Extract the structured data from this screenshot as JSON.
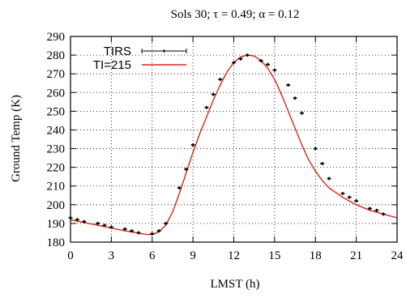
{
  "chart_data": {
    "type": "line",
    "title": "Sols 30; τ = 0.49; α = 0.12",
    "xlabel": "LMST (h)",
    "ylabel": "Ground Temp (K)",
    "xlim": [
      0,
      24
    ],
    "ylim": [
      180,
      290
    ],
    "xticks": [
      0,
      3,
      6,
      9,
      12,
      15,
      18,
      21,
      24
    ],
    "yticks": [
      180,
      190,
      200,
      210,
      220,
      230,
      240,
      250,
      260,
      270,
      280,
      290
    ],
    "grid": true,
    "legend_position": "top-left",
    "legend": [
      {
        "label": "TIRS",
        "style": "points-with-errorbars",
        "color": "#000000"
      },
      {
        "label": "TI=215",
        "style": "line",
        "color": "#d9261c"
      }
    ],
    "series": [
      {
        "name": "TIRS",
        "type": "scatter",
        "color": "#000000",
        "x": [
          0.0,
          0.5,
          1.0,
          2.0,
          2.5,
          3.0,
          4.0,
          4.5,
          5.0,
          6.0,
          6.5,
          7.0,
          8.0,
          8.5,
          9.0,
          10.0,
          10.5,
          11.0,
          12.0,
          12.5,
          13.0,
          14.0,
          14.5,
          15.0,
          16.0,
          16.5,
          17.0,
          18.0,
          18.5,
          19.0,
          20.0,
          20.5,
          21.0,
          22.0,
          22.5,
          23.0
        ],
        "y": [
          193,
          192,
          191,
          190,
          189,
          188,
          187,
          186,
          185,
          184.5,
          186,
          190,
          209,
          219,
          232,
          252,
          259,
          267,
          276,
          278,
          280,
          277,
          275,
          272,
          264,
          257,
          249,
          230,
          222,
          214,
          206,
          204,
          202,
          198,
          197,
          195
        ]
      },
      {
        "name": "TI=215",
        "type": "line",
        "color": "#d9261c",
        "x": [
          0,
          1,
          2,
          3,
          4,
          5,
          5.5,
          6,
          6.5,
          7,
          7.5,
          8,
          8.5,
          9,
          9.5,
          10,
          10.5,
          11,
          11.5,
          12,
          12.5,
          13,
          13.5,
          14,
          14.5,
          15,
          15.5,
          16,
          16.5,
          17,
          17.5,
          18,
          18.5,
          19,
          20,
          21,
          22,
          23,
          24
        ],
        "y": [
          192,
          190.5,
          189,
          187.5,
          186,
          184.8,
          184.2,
          184,
          185.5,
          189,
          196,
          206,
          217,
          228,
          238,
          247,
          256,
          264,
          271,
          276,
          279,
          280,
          279.5,
          277,
          273,
          267,
          259,
          250,
          241,
          232,
          224,
          218,
          213,
          209,
          204,
          200,
          197,
          195,
          193
        ]
      }
    ]
  }
}
